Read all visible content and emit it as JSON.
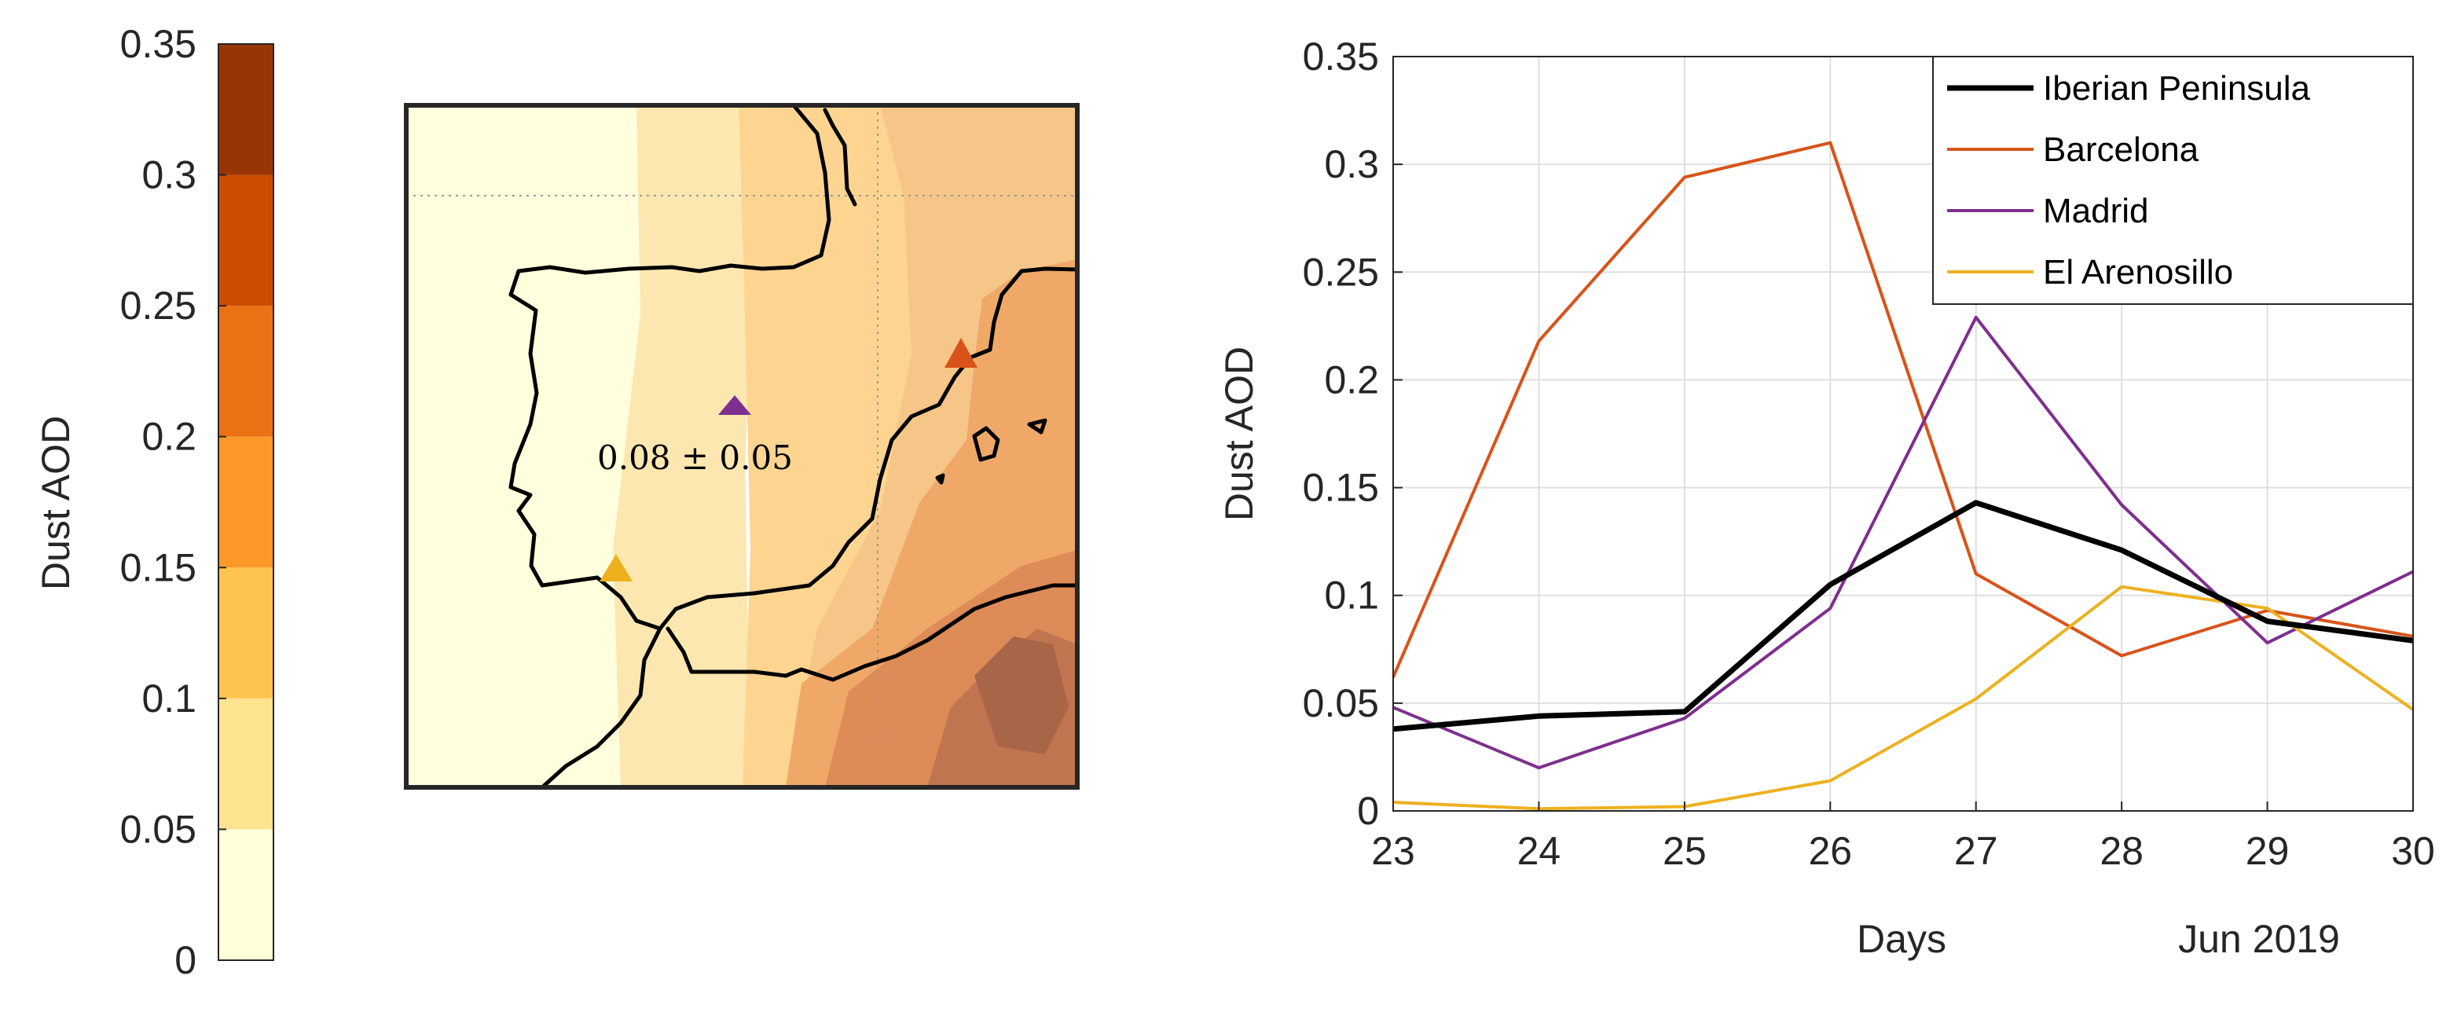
{
  "colorbar": {
    "label": "Dust AOD",
    "ticks": [
      "0",
      "0.05",
      "0.1",
      "0.15",
      "0.2",
      "0.25",
      "0.3",
      "0.35"
    ],
    "tick_values": [
      0,
      0.05,
      0.1,
      0.15,
      0.2,
      0.25,
      0.3,
      0.35
    ],
    "colors": [
      "#ffffd9",
      "#fee391",
      "#fec44f",
      "#fe9929",
      "#ec7014",
      "#cc4c02",
      "#993404"
    ]
  },
  "map": {
    "annotation": "0.08 ± 0.05",
    "sites": [
      {
        "name": "Madrid",
        "color": "#7e2f8e"
      },
      {
        "name": "Barcelona",
        "color": "#d95319"
      },
      {
        "name": "El Arenosillo",
        "color": "#edb120"
      }
    ]
  },
  "chart_data": {
    "type": "line",
    "title": "",
    "xlabel": "Days",
    "date_label": "Jun 2019",
    "ylabel": "Dust AOD",
    "x": [
      23,
      24,
      25,
      26,
      27,
      28,
      29,
      30
    ],
    "xlim": [
      23,
      30
    ],
    "ylim": [
      0,
      0.35
    ],
    "yticks": [
      0,
      0.05,
      0.1,
      0.15,
      0.2,
      0.25,
      0.3,
      0.35
    ],
    "ytick_labels": [
      "0",
      "0.05",
      "0.1",
      "0.15",
      "0.2",
      "0.25",
      "0.3",
      "0.35"
    ],
    "xtick_labels": [
      "23",
      "24",
      "25",
      "26",
      "27",
      "28",
      "29",
      "30"
    ],
    "grid": true,
    "legend_position": "top-right",
    "series": [
      {
        "name": "Iberian Peninsula",
        "color": "#000000",
        "width": "thick",
        "values": [
          0.038,
          0.044,
          0.046,
          0.105,
          0.143,
          0.121,
          0.088,
          0.079
        ]
      },
      {
        "name": "Barcelona",
        "color": "#d95319",
        "width": "thin",
        "values": [
          0.062,
          0.218,
          0.294,
          0.31,
          0.11,
          0.072,
          0.093,
          0.081
        ]
      },
      {
        "name": "Madrid",
        "color": "#7e2f8e",
        "width": "thin",
        "values": [
          0.048,
          0.02,
          0.043,
          0.094,
          0.229,
          0.142,
          0.078,
          0.111
        ]
      },
      {
        "name": "El Arenosillo",
        "color": "#edb120",
        "width": "thin",
        "values": [
          0.004,
          0.001,
          0.002,
          0.014,
          0.052,
          0.104,
          0.094,
          0.047
        ]
      }
    ]
  }
}
